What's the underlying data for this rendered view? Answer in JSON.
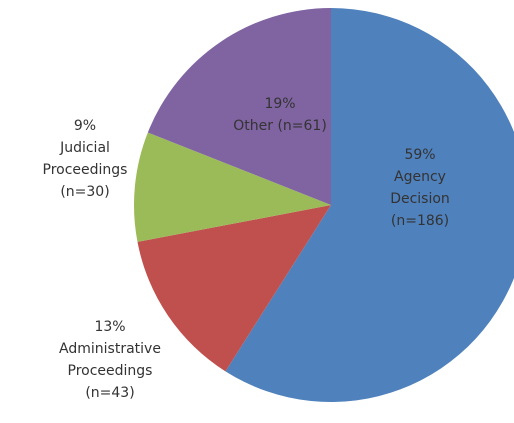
{
  "chart_data": {
    "type": "pie",
    "categories": [
      [
        "Agency",
        "Decision"
      ],
      [
        "Administrative",
        "Proceedings"
      ],
      [
        "Judicial",
        "Proceedings"
      ],
      [
        "Other"
      ]
    ],
    "values": [
      59,
      13,
      9,
      19
    ],
    "value_labels": [
      "59%",
      "13%",
      "9%",
      "19%"
    ],
    "counts": [
      "(n=186)",
      "(n=43)",
      "(n=30)",
      "(n=61)"
    ],
    "colors": [
      "#4f81bd",
      "#c0504d",
      "#9bbb59",
      "#8064a2"
    ]
  }
}
